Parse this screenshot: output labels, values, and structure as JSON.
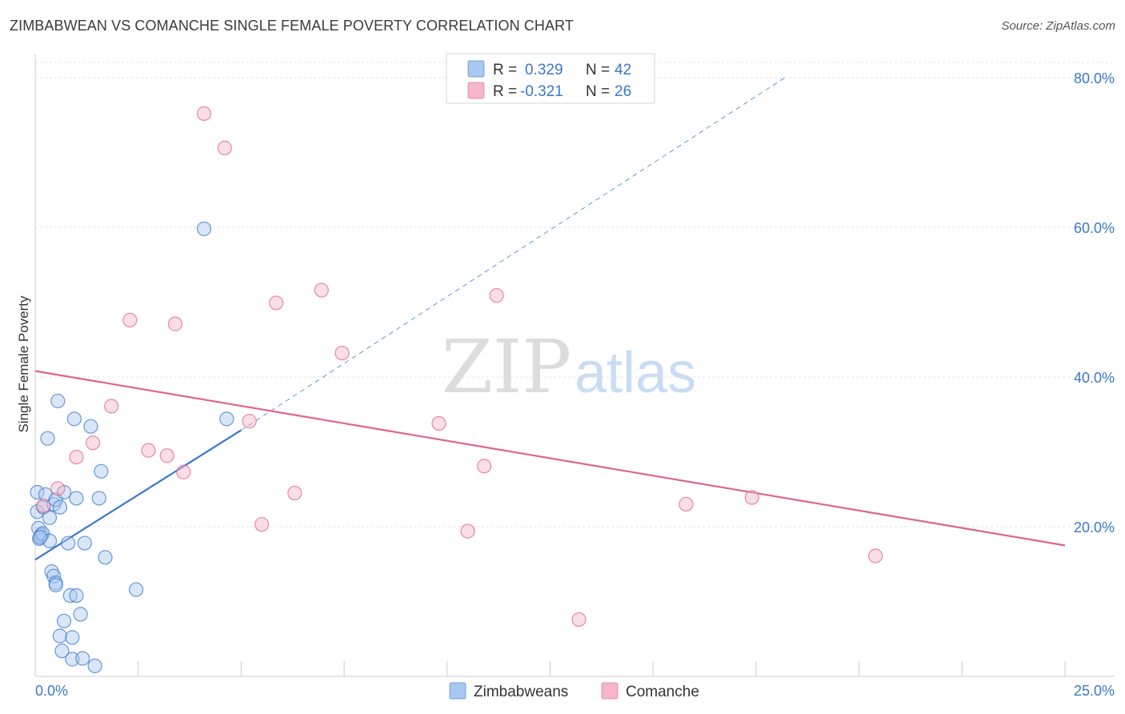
{
  "header": {
    "title": "ZIMBABWEAN VS COMANCHE SINGLE FEMALE POVERTY CORRELATION CHART",
    "source": "Source: ZipAtlas.com"
  },
  "watermark": {
    "zip": "ZIP",
    "atlas": "atlas"
  },
  "legend": {
    "rows": [
      {
        "r_label": "R =",
        "r_value": "0.329",
        "n_label": "N =",
        "n_value": "42",
        "color": "#a8c8ef"
      },
      {
        "r_label": "R =",
        "r_value": "-0.321",
        "n_label": "N =",
        "n_value": "26",
        "color": "#f4b6c8"
      }
    ]
  },
  "chart_data": {
    "type": "scatter",
    "title": "ZIMBABWEAN VS COMANCHE SINGLE FEMALE POVERTY CORRELATION CHART",
    "xlabel": "",
    "ylabel": "Single Female Poverty",
    "xlim": [
      0,
      25
    ],
    "ylim": [
      0,
      80
    ],
    "x_tick_labels": [
      "0.0%",
      "25.0%"
    ],
    "y_ticks": [
      20,
      40,
      60,
      80
    ],
    "y_tick_labels": [
      "20.0%",
      "40.0%",
      "60.0%",
      "80.0%"
    ],
    "grid": true,
    "legend_position": "top-center",
    "series": [
      {
        "name": "Zimbabweans",
        "color": "#3b78c9",
        "fill": "#a8c8ef",
        "points": [
          [
            0.05,
            24.6
          ],
          [
            0.05,
            22.0
          ],
          [
            0.08,
            19.8
          ],
          [
            0.1,
            18.4
          ],
          [
            0.15,
            18.9
          ],
          [
            0.18,
            19.1
          ],
          [
            0.2,
            22.6
          ],
          [
            0.25,
            24.3
          ],
          [
            0.3,
            31.8
          ],
          [
            0.35,
            18.1
          ],
          [
            0.35,
            21.2
          ],
          [
            0.4,
            14.0
          ],
          [
            0.45,
            23.0
          ],
          [
            0.45,
            13.4
          ],
          [
            0.5,
            12.5
          ],
          [
            0.5,
            12.2
          ],
          [
            0.55,
            36.8
          ],
          [
            0.5,
            23.6
          ],
          [
            0.6,
            5.4
          ],
          [
            0.6,
            22.6
          ],
          [
            0.65,
            3.4
          ],
          [
            0.7,
            24.6
          ],
          [
            0.7,
            7.4
          ],
          [
            0.8,
            17.8
          ],
          [
            0.85,
            10.8
          ],
          [
            0.9,
            5.2
          ],
          [
            0.9,
            2.3
          ],
          [
            0.95,
            34.4
          ],
          [
            1.0,
            10.8
          ],
          [
            1.0,
            23.8
          ],
          [
            1.1,
            8.3
          ],
          [
            1.15,
            2.4
          ],
          [
            1.2,
            17.8
          ],
          [
            1.35,
            33.4
          ],
          [
            1.45,
            1.4
          ],
          [
            1.55,
            23.8
          ],
          [
            1.6,
            27.4
          ],
          [
            1.7,
            15.9
          ],
          [
            2.45,
            11.6
          ],
          [
            4.1,
            59.8
          ],
          [
            4.65,
            34.4
          ],
          [
            0.12,
            18.6
          ]
        ],
        "trendline": {
          "x0": 0.0,
          "y0": 15.6,
          "x1": 5.0,
          "y1": 32.9
        },
        "trendline_extension": {
          "x0": 5.0,
          "y0": 32.9,
          "x1": 18.2,
          "y1": 80.0
        }
      },
      {
        "name": "Comanche",
        "color": "#e0628e",
        "fill": "#f4b6c8",
        "points": [
          [
            0.2,
            22.8
          ],
          [
            0.55,
            25.1
          ],
          [
            1.0,
            29.3
          ],
          [
            1.4,
            31.2
          ],
          [
            1.85,
            36.1
          ],
          [
            2.3,
            47.6
          ],
          [
            2.75,
            30.2
          ],
          [
            3.2,
            29.5
          ],
          [
            3.4,
            47.1
          ],
          [
            3.6,
            27.3
          ],
          [
            4.1,
            75.2
          ],
          [
            4.6,
            70.6
          ],
          [
            5.2,
            34.1
          ],
          [
            5.5,
            20.3
          ],
          [
            5.85,
            49.9
          ],
          [
            6.3,
            24.5
          ],
          [
            6.95,
            51.6
          ],
          [
            7.45,
            43.2
          ],
          [
            9.8,
            33.8
          ],
          [
            10.5,
            19.4
          ],
          [
            10.9,
            28.1
          ],
          [
            11.2,
            50.9
          ],
          [
            13.2,
            7.6
          ],
          [
            15.8,
            23.0
          ],
          [
            17.4,
            23.9
          ],
          [
            20.4,
            16.1
          ]
        ],
        "trendline": {
          "x0": 0.0,
          "y0": 40.8,
          "x1": 25.0,
          "y1": 17.5
        }
      }
    ]
  },
  "bottom_legend": {
    "items": [
      {
        "label": "Zimbabweans",
        "color": "#a8c8ef"
      },
      {
        "label": "Comanche",
        "color": "#f4b6c8"
      }
    ]
  }
}
